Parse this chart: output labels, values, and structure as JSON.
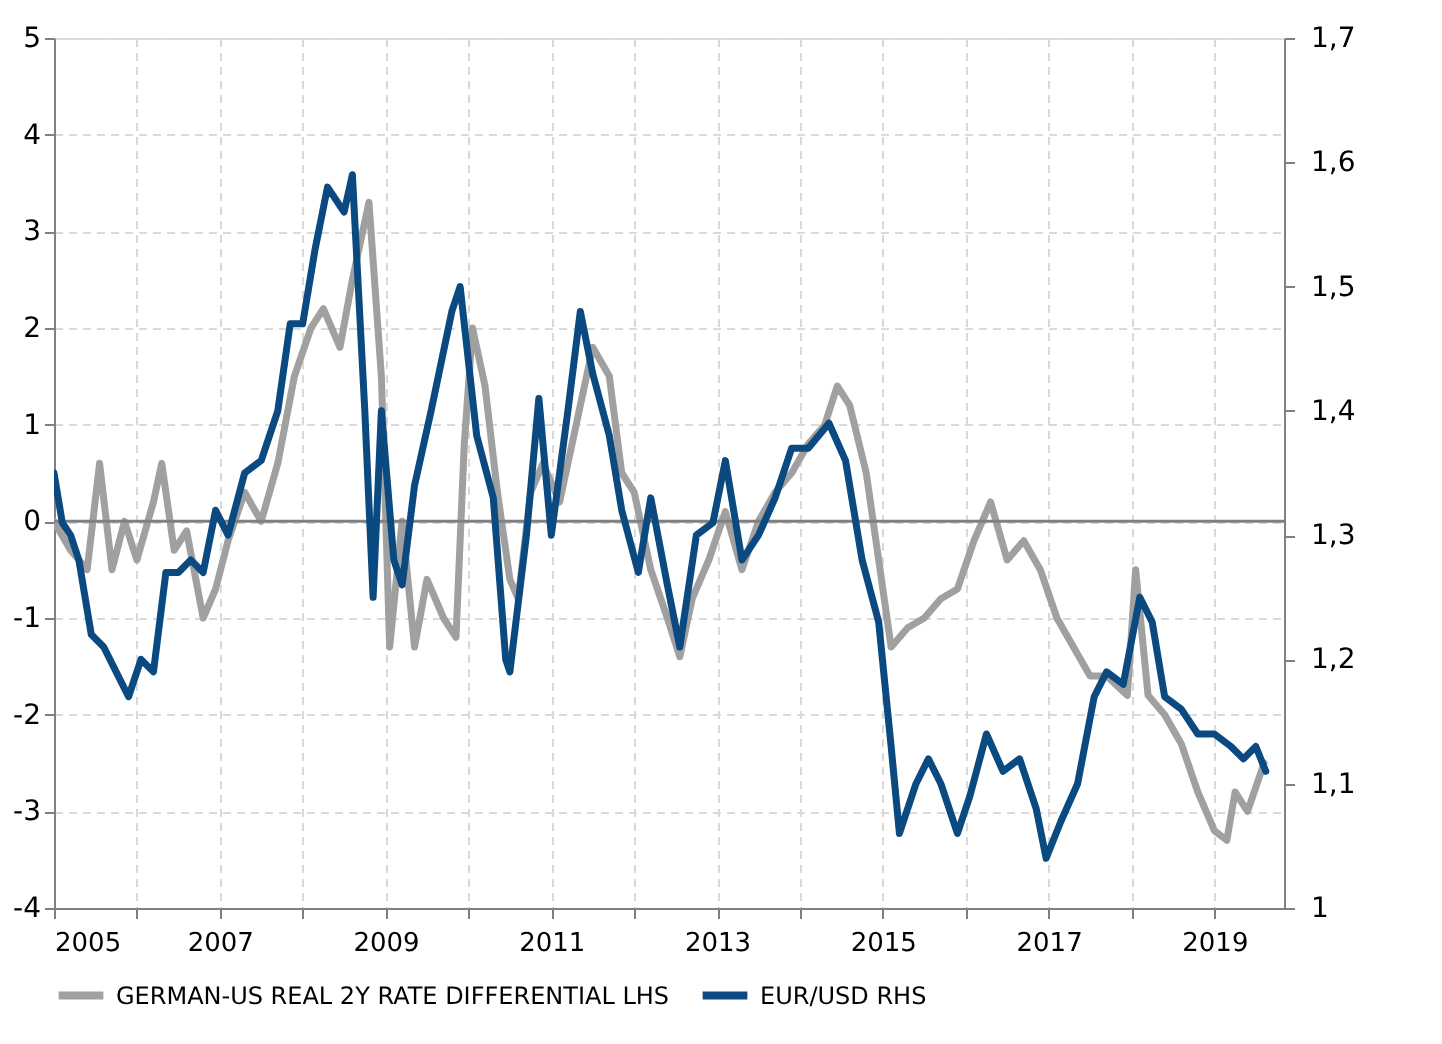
{
  "chart_data": {
    "type": "line",
    "xlim": [
      2005,
      2019.84
    ],
    "xticks": [
      2005,
      {
        "value": 2006,
        "label": null
      },
      2007,
      {
        "value": 2008,
        "label": null
      },
      2009,
      {
        "value": 2010,
        "label": null
      },
      2011,
      {
        "value": 2012,
        "label": null
      },
      2013,
      {
        "value": 2014,
        "label": null
      },
      2015,
      {
        "value": 2016,
        "label": null
      },
      2017,
      {
        "value": 2018,
        "label": null
      },
      2019
    ],
    "ylim": [
      -4,
      5
    ],
    "yticks": [
      -4,
      -3,
      -2,
      -1,
      0,
      1,
      2,
      3,
      4,
      5
    ],
    "y2lim": [
      1,
      1.7
    ],
    "y2ticks": [
      1,
      {
        "value": 1.1,
        "label": "1,1"
      },
      {
        "value": 1.2,
        "label": "1,2"
      },
      {
        "value": 1.3,
        "label": "1,3"
      },
      {
        "value": 1.4,
        "label": "1,4"
      },
      {
        "value": 1.5,
        "label": "1,5"
      },
      {
        "value": 1.6,
        "label": "1,6"
      },
      {
        "value": 1.7,
        "label": "1,7"
      }
    ],
    "grid": true,
    "legend": "bottom",
    "line_style": "solid",
    "marker": "none",
    "ref_lines": [
      {
        "axis": "y",
        "value": 0,
        "label": null,
        "color": "#808080"
      }
    ],
    "series": [
      {
        "name": "GERMAN-US REAL 2Y RATE DIFFERENTIAL LHS",
        "color": "#a0a0a0",
        "x": [
          2005.0,
          2005.2,
          2005.4,
          2005.55,
          2005.7,
          2005.85,
          2006.0,
          2006.2,
          2006.3,
          2006.45,
          2006.6,
          2006.8,
          2006.95,
          2007.1,
          2007.3,
          2007.5,
          2007.7,
          2007.9,
          2008.1,
          2008.25,
          2008.45,
          2008.6,
          2008.8,
          2008.95,
          2009.05,
          2009.2,
          2009.35,
          2009.5,
          2009.7,
          2009.85,
          2009.95,
          2010.05,
          2010.2,
          2010.35,
          2010.5,
          2010.6,
          2010.75,
          2010.9,
          2011.1,
          2011.3,
          2011.5,
          2011.7,
          2011.85,
          2012.0,
          2012.2,
          2012.4,
          2012.55,
          2012.7,
          2012.9,
          2013.1,
          2013.3,
          2013.5,
          2013.7,
          2013.9,
          2014.1,
          2014.3,
          2014.45,
          2014.6,
          2014.8,
          2014.95,
          2015.1,
          2015.3,
          2015.5,
          2015.7,
          2015.9,
          2016.1,
          2016.3,
          2016.5,
          2016.7,
          2016.9,
          2017.1,
          2017.3,
          2017.5,
          2017.7,
          2017.95,
          2018.05,
          2018.2,
          2018.4,
          2018.6,
          2018.8,
          2019.0,
          2019.15,
          2019.25,
          2019.4,
          2019.6
        ],
        "values": [
          0.0,
          -0.3,
          -0.5,
          0.6,
          -0.5,
          0.0,
          -0.4,
          0.2,
          0.6,
          -0.3,
          -0.1,
          -1.0,
          -0.7,
          -0.2,
          0.3,
          0.0,
          0.6,
          1.5,
          2.0,
          2.2,
          1.8,
          2.5,
          3.3,
          1.5,
          -1.3,
          0.0,
          -1.3,
          -0.6,
          -1.0,
          -1.2,
          0.8,
          2.0,
          1.4,
          0.3,
          -0.6,
          -0.8,
          0.3,
          0.6,
          0.2,
          1.0,
          1.8,
          1.5,
          0.5,
          0.3,
          -0.5,
          -1.0,
          -1.4,
          -0.8,
          -0.4,
          0.1,
          -0.5,
          0.0,
          0.3,
          0.5,
          0.8,
          1.0,
          1.4,
          1.2,
          0.5,
          -0.4,
          -1.3,
          -1.1,
          -1.0,
          -0.8,
          -0.7,
          -0.2,
          0.2,
          -0.4,
          -0.2,
          -0.5,
          -1.0,
          -1.3,
          -1.6,
          -1.6,
          -1.8,
          -0.5,
          -1.8,
          -2.0,
          -2.3,
          -2.8,
          -3.2,
          -3.3,
          -2.8,
          -3.0,
          -2.5
        ]
      },
      {
        "name": "EUR/USD RHS",
        "color": "#0b4a80",
        "axis": "y2",
        "x": [
          2005.0,
          2005.1,
          2005.2,
          2005.3,
          2005.45,
          2005.6,
          2005.75,
          2005.9,
          2006.05,
          2006.2,
          2006.35,
          2006.5,
          2006.65,
          2006.8,
          2006.95,
          2007.1,
          2007.3,
          2007.5,
          2007.7,
          2007.85,
          2008.0,
          2008.15,
          2008.3,
          2008.5,
          2008.6,
          2008.75,
          2008.85,
          2008.95,
          2009.1,
          2009.2,
          2009.35,
          2009.55,
          2009.8,
          2009.9,
          2010.1,
          2010.3,
          2010.45,
          2010.5,
          2010.7,
          2010.85,
          2011.0,
          2011.2,
          2011.35,
          2011.5,
          2011.7,
          2011.85,
          2012.05,
          2012.2,
          2012.4,
          2012.55,
          2012.75,
          2012.95,
          2013.1,
          2013.3,
          2013.5,
          2013.7,
          2013.9,
          2014.1,
          2014.35,
          2014.55,
          2014.75,
          2014.95,
          2015.1,
          2015.2,
          2015.4,
          2015.55,
          2015.7,
          2015.9,
          2016.05,
          2016.25,
          2016.45,
          2016.65,
          2016.85,
          2016.97,
          2017.15,
          2017.35,
          2017.55,
          2017.7,
          2017.9,
          2018.1,
          2018.25,
          2018.4,
          2018.6,
          2018.8,
          2019.0,
          2019.2,
          2019.35,
          2019.5,
          2019.62
        ],
        "values": [
          1.35,
          1.31,
          1.3,
          1.28,
          1.22,
          1.21,
          1.19,
          1.17,
          1.2,
          1.19,
          1.27,
          1.27,
          1.28,
          1.27,
          1.32,
          1.3,
          1.35,
          1.36,
          1.4,
          1.47,
          1.47,
          1.53,
          1.58,
          1.56,
          1.59,
          1.4,
          1.25,
          1.4,
          1.28,
          1.26,
          1.34,
          1.4,
          1.48,
          1.5,
          1.38,
          1.33,
          1.2,
          1.19,
          1.3,
          1.41,
          1.3,
          1.4,
          1.48,
          1.43,
          1.38,
          1.32,
          1.27,
          1.33,
          1.26,
          1.21,
          1.3,
          1.31,
          1.36,
          1.28,
          1.3,
          1.33,
          1.37,
          1.37,
          1.39,
          1.36,
          1.28,
          1.23,
          1.13,
          1.06,
          1.1,
          1.12,
          1.1,
          1.06,
          1.09,
          1.14,
          1.11,
          1.12,
          1.08,
          1.04,
          1.07,
          1.1,
          1.17,
          1.19,
          1.18,
          1.25,
          1.23,
          1.17,
          1.16,
          1.14,
          1.14,
          1.13,
          1.12,
          1.13,
          1.11
        ]
      }
    ]
  }
}
